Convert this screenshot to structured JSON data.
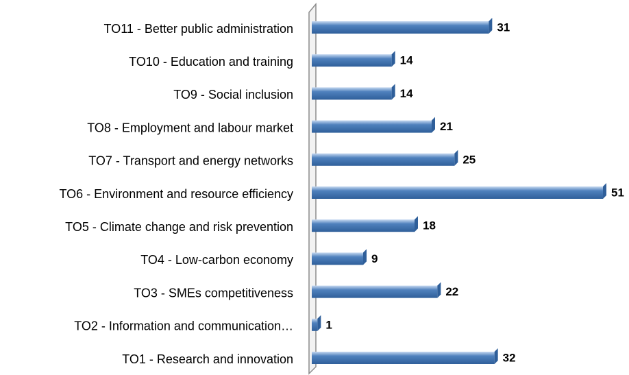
{
  "chart_data": {
    "type": "bar",
    "orientation": "horizontal",
    "categories": [
      "TO11 - Better public administration",
      "TO10 - Education and training",
      "TO9 - Social inclusion",
      "TO8 - Employment and labour market",
      "TO7 - Transport and energy networks",
      "TO6 - Environment and resource efficiency",
      "TO5 - Climate change and risk prevention",
      "TO4 - Low-carbon economy",
      "TO3 - SMEs competitiveness",
      "TO2 - Information and communication…",
      "TO1 - Research and innovation"
    ],
    "values": [
      31,
      14,
      14,
      21,
      25,
      51,
      18,
      9,
      22,
      1,
      32
    ],
    "color": "#4f81bd"
  }
}
